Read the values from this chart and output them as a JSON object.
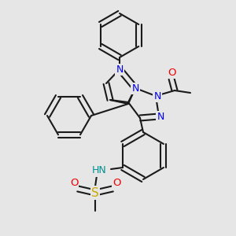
{
  "background_color": "#e6e6e6",
  "bond_color": "#1a1a1a",
  "nitrogen_color": "#0000ee",
  "oxygen_color": "#ee0000",
  "sulfur_color": "#ccaa00",
  "hydrogen_color": "#009090",
  "line_width": 1.5,
  "figsize": [
    3.0,
    3.0
  ],
  "dpi": 100,
  "xlim": [
    0,
    300
  ],
  "ylim": [
    0,
    300
  ]
}
